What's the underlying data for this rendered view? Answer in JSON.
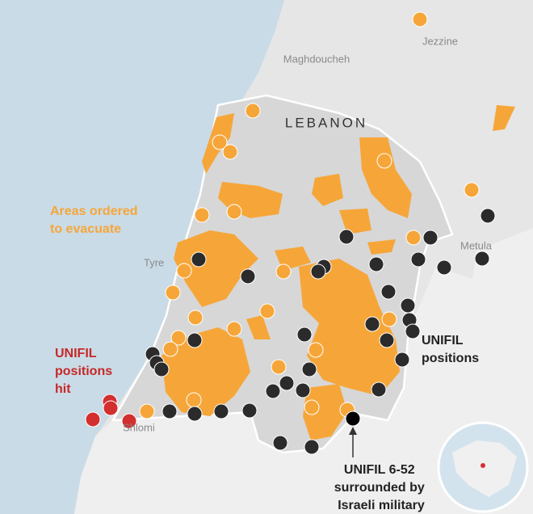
{
  "places": {
    "jezzine": "Jezzine",
    "maghdoucheh": "Maghdoucheh",
    "country": "LEBANON",
    "tyre": "Tyre",
    "metula": "Metula",
    "shlomi": "Shlomi"
  },
  "annotations": {
    "evacuate": [
      "Areas ordered",
      "to evacuate"
    ],
    "hit": [
      "UNIFIL",
      "positions",
      "hit"
    ],
    "positions": [
      "UNIFIL",
      "positions"
    ],
    "surrounded": [
      "UNIFIL 6-52",
      "surrounded by",
      "Israeli military"
    ]
  }
}
